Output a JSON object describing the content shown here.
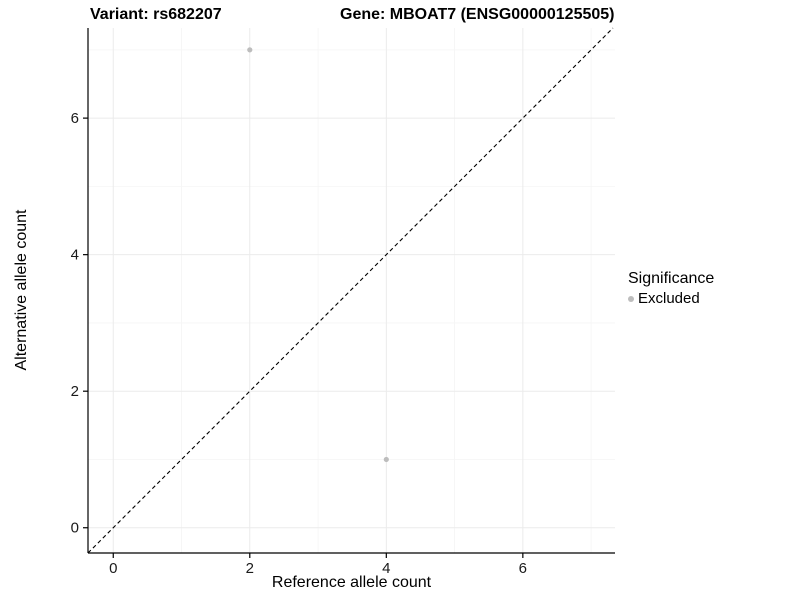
{
  "chart_data": {
    "type": "scatter",
    "title_left": "Variant: rs682207",
    "title_right": "Gene: MBOAT7 (ENSG00000125505)",
    "xlabel": "Reference allele count",
    "ylabel": "Alternative allele count",
    "xlim": [
      -0.37,
      7.35
    ],
    "ylim": [
      -0.37,
      7.32
    ],
    "xticks": [
      0,
      2,
      4,
      6
    ],
    "yticks": [
      0,
      2,
      4,
      6
    ],
    "minor_ticks": [
      1,
      3,
      5,
      7
    ],
    "series": [
      {
        "name": "Excluded",
        "color": "#bdbdbd",
        "points": [
          [
            2,
            7
          ],
          [
            4,
            1
          ]
        ]
      }
    ],
    "identity_line": {
      "from": -0.37,
      "to": 7.32,
      "style": "dashed",
      "color": "#000000"
    },
    "grid": true,
    "legend": {
      "title": "Significance",
      "position": "right",
      "items": [
        {
          "label": "Excluded",
          "color": "#bdbdbd"
        }
      ]
    },
    "colors": {
      "grid_major": "#ebebeb",
      "grid_minor": "#f5f5f5",
      "axis": "#000000",
      "tick_label": "#1a1a1a",
      "point": "#bdbdbd"
    }
  }
}
